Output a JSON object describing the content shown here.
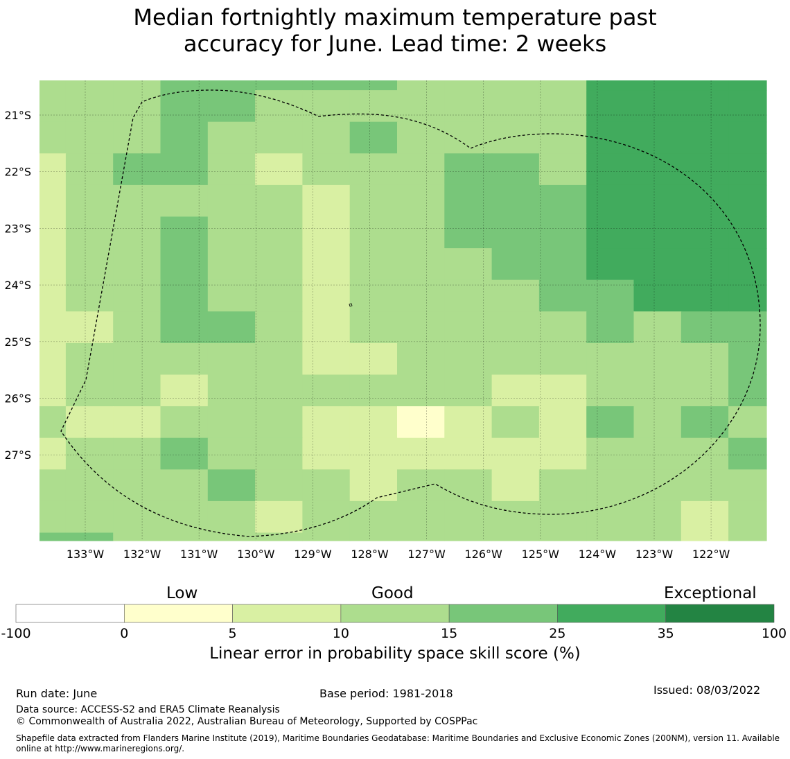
{
  "title": {
    "line1": "Median fortnightly maximum temperature past",
    "line2": "accuracy for June. Lead time: 2 weeks"
  },
  "map": {
    "lon_labels": [
      "133°W",
      "132°W",
      "131°W",
      "130°W",
      "129°W",
      "128°W",
      "127°W",
      "126°W",
      "125°W",
      "124°W",
      "123°W",
      "122°W"
    ],
    "lat_labels": [
      "21°S",
      "22°S",
      "23°S",
      "24°S",
      "25°S",
      "26°S",
      "27°S"
    ],
    "gridlines": true,
    "boundary": "dashed EEZ outline",
    "grid_levels": [
      [
        3,
        3,
        3,
        4,
        4,
        4,
        4,
        4,
        3,
        3,
        3,
        3,
        5,
        5,
        5,
        5
      ],
      [
        3,
        3,
        3,
        4,
        4,
        3,
        3,
        3,
        3,
        3,
        3,
        3,
        5,
        5,
        5,
        5
      ],
      [
        3,
        3,
        3,
        4,
        3,
        3,
        3,
        4,
        3,
        3,
        3,
        3,
        5,
        5,
        5,
        5
      ],
      [
        2,
        3,
        4,
        4,
        3,
        2,
        3,
        3,
        3,
        4,
        4,
        3,
        5,
        5,
        5,
        5
      ],
      [
        2,
        3,
        3,
        3,
        3,
        3,
        2,
        3,
        3,
        4,
        4,
        4,
        5,
        5,
        5,
        5
      ],
      [
        2,
        3,
        3,
        4,
        3,
        3,
        2,
        3,
        3,
        4,
        4,
        4,
        5,
        5,
        5,
        5
      ],
      [
        2,
        3,
        3,
        4,
        3,
        3,
        2,
        3,
        3,
        3,
        4,
        4,
        5,
        5,
        5,
        5
      ],
      [
        2,
        3,
        3,
        4,
        3,
        3,
        2,
        3,
        3,
        3,
        3,
        4,
        4,
        5,
        5,
        5
      ],
      [
        2,
        2,
        3,
        4,
        4,
        3,
        2,
        3,
        3,
        3,
        3,
        3,
        4,
        3,
        4,
        4
      ],
      [
        2,
        3,
        3,
        3,
        3,
        3,
        2,
        2,
        3,
        3,
        3,
        3,
        3,
        3,
        3,
        4
      ],
      [
        2,
        3,
        3,
        2,
        3,
        3,
        3,
        3,
        3,
        3,
        2,
        2,
        3,
        3,
        3,
        4
      ],
      [
        3,
        2,
        2,
        3,
        3,
        3,
        2,
        2,
        1,
        2,
        3,
        2,
        4,
        3,
        4,
        3
      ],
      [
        2,
        3,
        3,
        4,
        3,
        3,
        2,
        2,
        2,
        2,
        2,
        2,
        3,
        3,
        3,
        4
      ],
      [
        3,
        3,
        3,
        3,
        4,
        3,
        3,
        2,
        3,
        3,
        2,
        3,
        3,
        3,
        3,
        3
      ],
      [
        3,
        3,
        3,
        3,
        3,
        2,
        3,
        3,
        3,
        3,
        3,
        3,
        3,
        3,
        2,
        3
      ],
      [
        4,
        4,
        3,
        3,
        3,
        3,
        3,
        3,
        3,
        3,
        3,
        3,
        3,
        3,
        2,
        3
      ],
      [
        4,
        4,
        3,
        3,
        3,
        3,
        3,
        3,
        3,
        3,
        3,
        3,
        3,
        3,
        2,
        3
      ]
    ]
  },
  "colorbar": {
    "categories": [
      "Low",
      "Good",
      "Exceptional"
    ],
    "ticks": [
      "-100",
      "0",
      "5",
      "10",
      "15",
      "25",
      "35",
      "100"
    ],
    "colors": [
      "#ffffff",
      "#ffffcc",
      "#d9f0a3",
      "#addd8e",
      "#78c679",
      "#41ab5d",
      "#238443"
    ],
    "label": "Linear error in probability space skill score (%)"
  },
  "footer": {
    "run_date": "Run date: June",
    "base_period": "Base period: 1981-2018",
    "issued": "Issued: 08/03/2022",
    "data_source": "Data source: ACCESS-S2 and ERA5 Climate Reanalysis",
    "copyright": "© Commonwealth of Australia 2022, Australian Bureau of Meteorology, Supported by COSPPac",
    "shapefile": "Shapefile data extracted from Flanders Marine Institute (2019), Maritime Boundaries Geodatabase: Maritime Boundaries and Exclusive Economic Zones (200NM), version 11. Available online at http://www.marineregions.org/."
  }
}
